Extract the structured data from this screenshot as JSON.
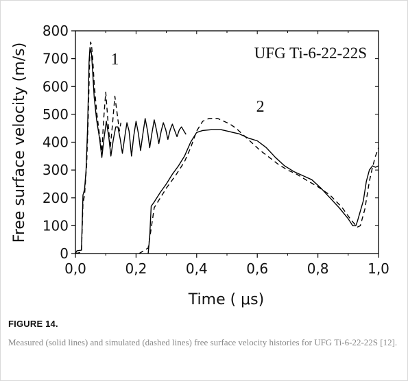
{
  "figure": {
    "label": "FIGURE 14.",
    "caption": "Measured (solid lines) and simulated (dashed lines) free surface velocity histories for UFG Ti-6-22-22S [12]."
  },
  "chart_data": {
    "type": "line",
    "annotation": "UFG  Ti-6-22-22S",
    "xlabel": "Time ( μs)",
    "ylabel": "Free surface velocity (m/s)",
    "xlim": [
      0.0,
      1.0
    ],
    "ylim": [
      0,
      800
    ],
    "x_ticks": [
      0.0,
      0.2,
      0.4,
      0.6,
      0.8,
      1.0
    ],
    "x_tick_labels": [
      "0,0",
      "0,2",
      "0,4",
      "0,6",
      "0,8",
      "1,0"
    ],
    "y_ticks": [
      0,
      100,
      200,
      300,
      400,
      500,
      600,
      700,
      800
    ],
    "y_tick_labels": [
      "0",
      "100",
      "200",
      "300",
      "400",
      "500",
      "600",
      "700",
      "800"
    ],
    "curve_labels": [
      {
        "text": "1",
        "x": 0.13,
        "y": 680
      },
      {
        "text": "2",
        "x": 0.61,
        "y": 510
      }
    ],
    "series": [
      {
        "style": "solid",
        "points": [
          [
            0.0,
            0
          ],
          [
            0.005,
            10
          ],
          [
            0.02,
            12
          ],
          [
            0.025,
            210
          ],
          [
            0.03,
            230
          ],
          [
            0.035,
            300
          ],
          [
            0.04,
            450
          ],
          [
            0.045,
            690
          ],
          [
            0.048,
            740
          ],
          [
            0.053,
            720
          ],
          [
            0.057,
            650
          ],
          [
            0.062,
            560
          ],
          [
            0.07,
            480
          ],
          [
            0.08,
            410
          ],
          [
            0.087,
            345
          ],
          [
            0.095,
            420
          ],
          [
            0.102,
            475
          ],
          [
            0.11,
            420
          ],
          [
            0.117,
            350
          ],
          [
            0.125,
            410
          ],
          [
            0.133,
            455
          ],
          [
            0.14,
            455
          ],
          [
            0.148,
            410
          ],
          [
            0.155,
            360
          ],
          [
            0.163,
            420
          ],
          [
            0.17,
            470
          ],
          [
            0.177,
            440
          ],
          [
            0.185,
            350
          ],
          [
            0.192,
            420
          ],
          [
            0.2,
            475
          ],
          [
            0.208,
            430
          ],
          [
            0.215,
            370
          ],
          [
            0.222,
            425
          ],
          [
            0.23,
            485
          ],
          [
            0.238,
            440
          ],
          [
            0.245,
            380
          ],
          [
            0.252,
            430
          ],
          [
            0.26,
            480
          ],
          [
            0.268,
            440
          ],
          [
            0.275,
            395
          ],
          [
            0.283,
            440
          ],
          [
            0.29,
            470
          ],
          [
            0.298,
            445
          ],
          [
            0.305,
            410
          ],
          [
            0.313,
            445
          ],
          [
            0.32,
            465
          ],
          [
            0.328,
            440
          ],
          [
            0.335,
            420
          ],
          [
            0.343,
            445
          ],
          [
            0.35,
            455
          ],
          [
            0.358,
            440
          ],
          [
            0.365,
            428
          ]
        ]
      },
      {
        "style": "dashed",
        "points": [
          [
            0.0,
            0
          ],
          [
            0.02,
            5
          ],
          [
            0.025,
            180
          ],
          [
            0.03,
            210
          ],
          [
            0.037,
            320
          ],
          [
            0.042,
            480
          ],
          [
            0.047,
            700
          ],
          [
            0.05,
            760
          ],
          [
            0.053,
            750
          ],
          [
            0.057,
            700
          ],
          [
            0.062,
            610
          ],
          [
            0.07,
            510
          ],
          [
            0.08,
            420
          ],
          [
            0.087,
            365
          ],
          [
            0.093,
            480
          ],
          [
            0.1,
            580
          ],
          [
            0.107,
            480
          ],
          [
            0.115,
            380
          ],
          [
            0.122,
            460
          ],
          [
            0.13,
            565
          ],
          [
            0.138,
            500
          ],
          [
            0.145,
            440
          ],
          [
            0.15,
            470
          ]
        ]
      },
      {
        "style": "solid",
        "points": [
          [
            0.24,
            0
          ],
          [
            0.245,
            60
          ],
          [
            0.25,
            170
          ],
          [
            0.26,
            185
          ],
          [
            0.28,
            220
          ],
          [
            0.3,
            250
          ],
          [
            0.32,
            285
          ],
          [
            0.34,
            315
          ],
          [
            0.36,
            350
          ],
          [
            0.38,
            400
          ],
          [
            0.4,
            435
          ],
          [
            0.42,
            442
          ],
          [
            0.45,
            445
          ],
          [
            0.48,
            445
          ],
          [
            0.5,
            440
          ],
          [
            0.52,
            435
          ],
          [
            0.54,
            430
          ],
          [
            0.57,
            415
          ],
          [
            0.6,
            405
          ],
          [
            0.63,
            380
          ],
          [
            0.66,
            345
          ],
          [
            0.69,
            315
          ],
          [
            0.72,
            295
          ],
          [
            0.75,
            280
          ],
          [
            0.78,
            265
          ],
          [
            0.81,
            235
          ],
          [
            0.84,
            200
          ],
          [
            0.87,
            165
          ],
          [
            0.9,
            125
          ],
          [
            0.915,
            100
          ],
          [
            0.925,
            100
          ],
          [
            0.93,
            115
          ],
          [
            0.95,
            190
          ],
          [
            0.96,
            260
          ],
          [
            0.97,
            300
          ],
          [
            0.98,
            315
          ],
          [
            0.99,
            310
          ],
          [
            1.0,
            315
          ]
        ]
      },
      {
        "style": "dashed",
        "points": [
          [
            0.21,
            0
          ],
          [
            0.24,
            20
          ],
          [
            0.25,
            90
          ],
          [
            0.26,
            165
          ],
          [
            0.28,
            200
          ],
          [
            0.3,
            235
          ],
          [
            0.33,
            280
          ],
          [
            0.36,
            330
          ],
          [
            0.38,
            380
          ],
          [
            0.4,
            440
          ],
          [
            0.42,
            475
          ],
          [
            0.44,
            485
          ],
          [
            0.47,
            485
          ],
          [
            0.49,
            475
          ],
          [
            0.51,
            465
          ],
          [
            0.53,
            450
          ],
          [
            0.55,
            430
          ],
          [
            0.58,
            400
          ],
          [
            0.61,
            370
          ],
          [
            0.64,
            345
          ],
          [
            0.67,
            320
          ],
          [
            0.7,
            300
          ],
          [
            0.73,
            285
          ],
          [
            0.76,
            265
          ],
          [
            0.8,
            240
          ],
          [
            0.84,
            210
          ],
          [
            0.88,
            165
          ],
          [
            0.91,
            120
          ],
          [
            0.93,
            95
          ],
          [
            0.94,
            100
          ],
          [
            0.955,
            160
          ],
          [
            0.97,
            260
          ],
          [
            0.98,
            310
          ],
          [
            0.99,
            350
          ],
          [
            1.0,
            380
          ]
        ]
      }
    ]
  }
}
